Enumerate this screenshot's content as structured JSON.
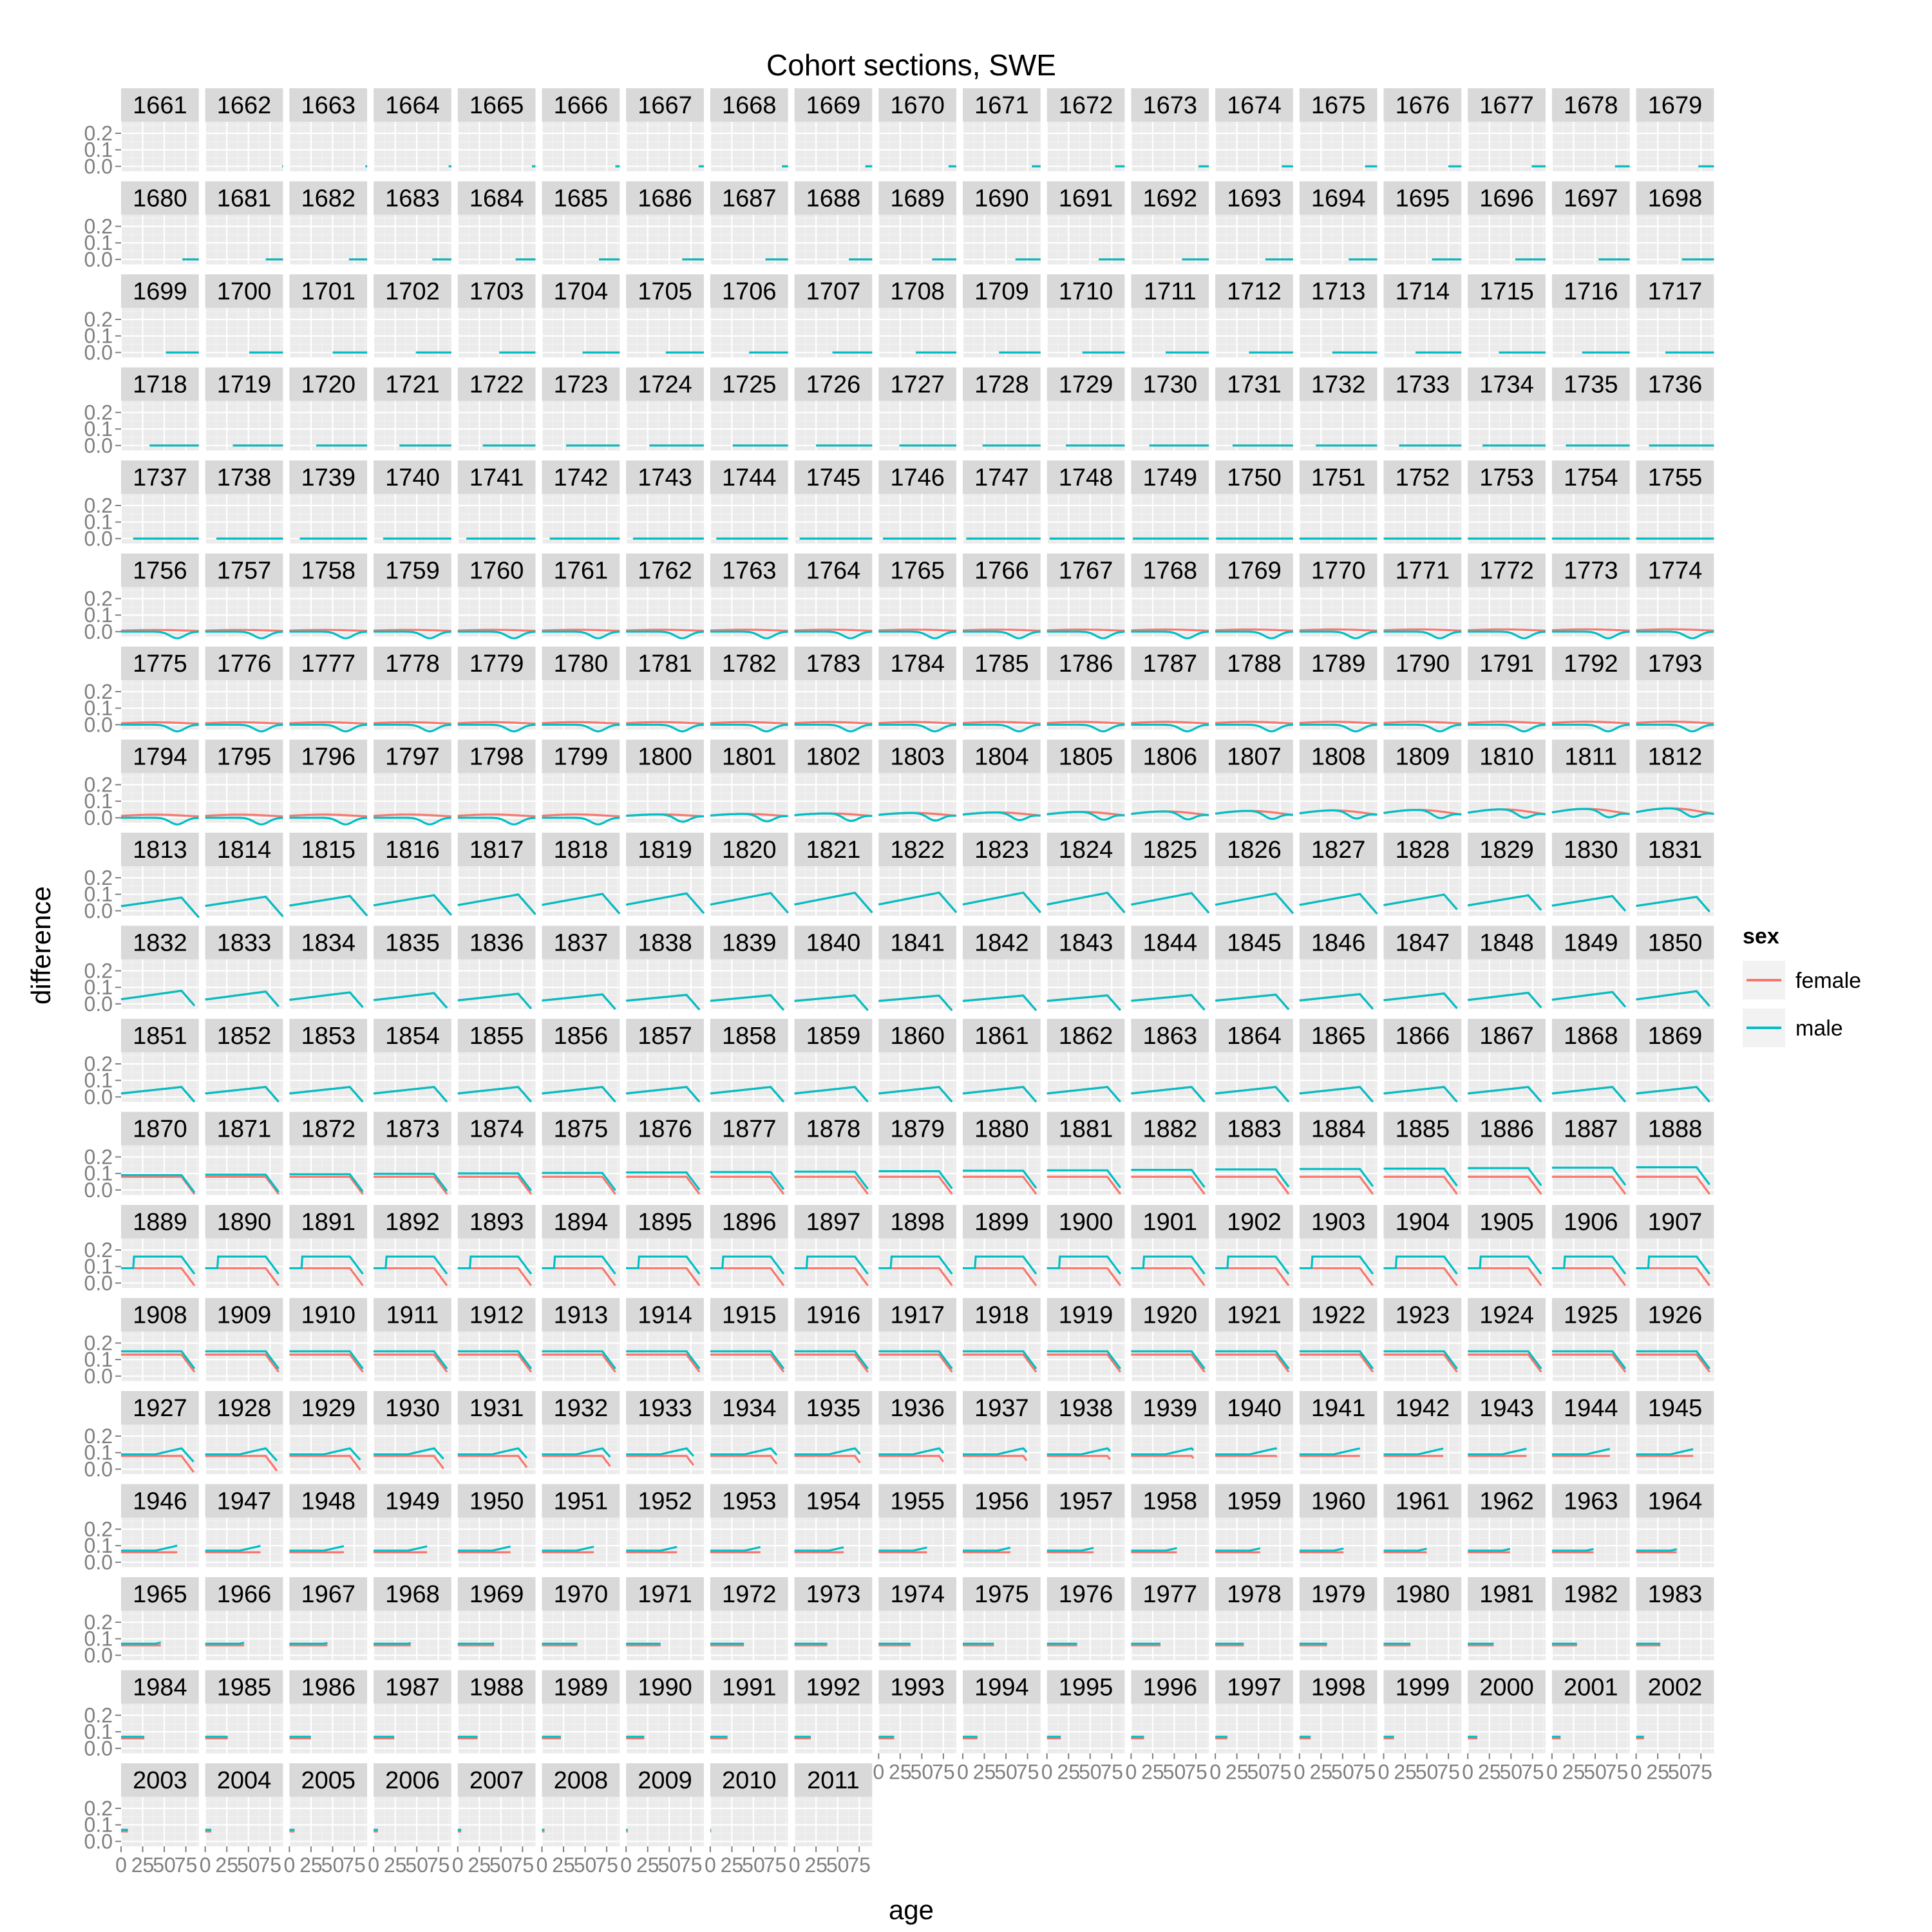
{
  "chart_data": {
    "type": "line",
    "title": "Cohort sections, SWE",
    "xlabel": "age",
    "ylabel": "difference",
    "xlim": [
      0,
      90
    ],
    "ylim": [
      -0.03,
      0.27
    ],
    "x_ticks": [
      0,
      25,
      50,
      75
    ],
    "x_tick_labels": [
      "0",
      "25",
      "50",
      "75"
    ],
    "y_ticks": [
      0.0,
      0.1,
      0.2
    ],
    "y_tick_labels": [
      "0.0",
      "0.1",
      "0.2"
    ],
    "grid": true,
    "facet_by": "cohort",
    "facet_columns": 19,
    "cohort_first": 1661,
    "cohort_last": 2011,
    "legend": {
      "title": "sex",
      "position": "right",
      "entries": [
        {
          "name": "female",
          "color": "#F8766D"
        },
        {
          "name": "male",
          "color": "#00BFC4"
        }
      ]
    },
    "colors": {
      "panel_bg": "#EBEBEB",
      "strip_bg": "#D9D9D9",
      "grid_major": "#FFFFFF",
      "grid_minor": "#F2F2F2",
      "axis_text": "#7F7F7F",
      "female": "#F8766D",
      "male": "#00BFC4"
    },
    "series_note_data": {
      "phases": [
        {
          "cohort_range": [
            1661,
            1700
          ],
          "female_max": 0.0,
          "male_max": 0.0
        },
        {
          "cohort_range": [
            1756,
            1800
          ],
          "female_max": 0.02,
          "male_min": -0.05
        },
        {
          "cohort_range": [
            1813,
            1850
          ],
          "female_max": 0.14,
          "male_max": 0.14
        },
        {
          "cohort_range": [
            1851,
            1869
          ],
          "female_max": 0.1,
          "male_max": 0.1
        },
        {
          "cohort_range": [
            1870,
            1888
          ],
          "female_max": 0.1,
          "male_max": 0.16
        },
        {
          "cohort_range": [
            1889,
            1907
          ],
          "female_max": 0.12,
          "male_max": 0.2
        },
        {
          "cohort_range": [
            1908,
            1926
          ],
          "female_max": 0.15,
          "male_max": 0.2
        },
        {
          "cohort_range": [
            1927,
            1945
          ],
          "female_max": 0.1,
          "male_max": 0.15
        },
        {
          "cohort_range": [
            1946,
            2011
          ],
          "female_max": 0.08,
          "male_max": 0.12
        }
      ]
    }
  }
}
